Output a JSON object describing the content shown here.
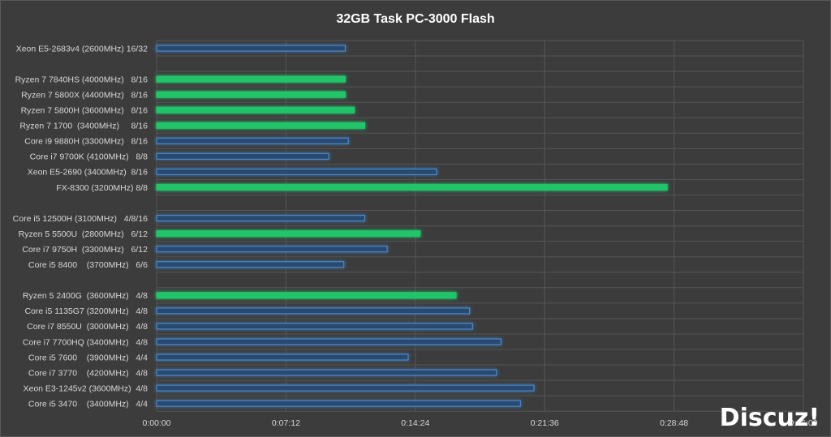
{
  "chart_data": {
    "type": "bar",
    "orientation": "horizontal",
    "title": "32GB Task PC-3000 Flash",
    "xlabel": "",
    "ylabel": "",
    "x_unit": "time (h:mm:ss)",
    "xlim": [
      "0:00:00",
      "0:36:00"
    ],
    "x_ticks": [
      "0:00:00",
      "0:07:12",
      "0:14:24",
      "0:21:36",
      "0:28:48",
      "0:36:00"
    ],
    "grid": "vertical and horizontal",
    "legend": "none",
    "colors": {
      "amd": "#22c46a",
      "intel": "#4a88c8",
      "background": "#3c3c3c",
      "grid": "#555555"
    },
    "categories": [
      {
        "label": "Xeon E5-2683v4 (2600MHz) 16/32",
        "value": "0:10:30",
        "vendor": "intel"
      },
      {
        "label": "",
        "value": null,
        "vendor": null
      },
      {
        "label": "Ryzen 7 7840HS (4000MHz)   8/16",
        "value": "0:10:30",
        "vendor": "amd"
      },
      {
        "label": "Ryzen 7 5800X (4400MHz)   8/16",
        "value": "0:10:30",
        "vendor": "amd"
      },
      {
        "label": "Ryzen 7 5800H (3600MHz)   8/16",
        "value": "0:11:00",
        "vendor": "amd"
      },
      {
        "label": "Ryzen 7 1700  (3400MHz)     8/16",
        "value": "0:11:35",
        "vendor": "amd"
      },
      {
        "label": "Core i9 9880H (3300MHz)   8/16",
        "value": "0:10:40",
        "vendor": "intel"
      },
      {
        "label": "Core i7 9700K (4100MHz)   8/8",
        "value": "0:09:35",
        "vendor": "intel"
      },
      {
        "label": "Xeon E5-2690 (3400MHz)  8/16",
        "value": "0:15:35",
        "vendor": "intel"
      },
      {
        "label": "FX-8300 (3200MHz) 8/8",
        "value": "0:28:25",
        "vendor": "amd"
      },
      {
        "label": "",
        "value": null,
        "vendor": null
      },
      {
        "label": "Core i5 12500H (3100MHz)   4/8/16",
        "value": "0:11:35",
        "vendor": "intel"
      },
      {
        "label": "Ryzen 5 5500U  (2800MHz)   6/12",
        "value": "0:14:40",
        "vendor": "amd"
      },
      {
        "label": "Core i7 9750H  (3300MHz)   6/12",
        "value": "0:12:50",
        "vendor": "intel"
      },
      {
        "label": "Core i5 8400    (3700MHz)   6/6",
        "value": "0:10:25",
        "vendor": "intel"
      },
      {
        "label": "",
        "value": null,
        "vendor": null
      },
      {
        "label": "Ryzen 5 2400G  (3600MHz)   4/8",
        "value": "0:16:40",
        "vendor": "amd"
      },
      {
        "label": "Core i5 1135G7 (3200MHz)   4/8",
        "value": "0:17:25",
        "vendor": "intel"
      },
      {
        "label": "Core i7 8550U  (3000MHz)   4/8",
        "value": "0:17:35",
        "vendor": "intel"
      },
      {
        "label": "Core i7 7700HQ (3400MHz)   4/8",
        "value": "0:19:10",
        "vendor": "intel"
      },
      {
        "label": "Core i5 7600    (3900MHz)   4/4",
        "value": "0:14:00",
        "vendor": "intel"
      },
      {
        "label": "Core i7 3770    (4200MHz)   4/8",
        "value": "0:18:55",
        "vendor": "intel"
      },
      {
        "label": "Xeon E3-1245v2 (3600MHz)  4/8",
        "value": "0:21:00",
        "vendor": "intel"
      },
      {
        "label": "Core i5 3470    (3400MHz)   4/4",
        "value": "0:20:15",
        "vendor": "intel"
      }
    ]
  },
  "watermark": "Discuz!"
}
